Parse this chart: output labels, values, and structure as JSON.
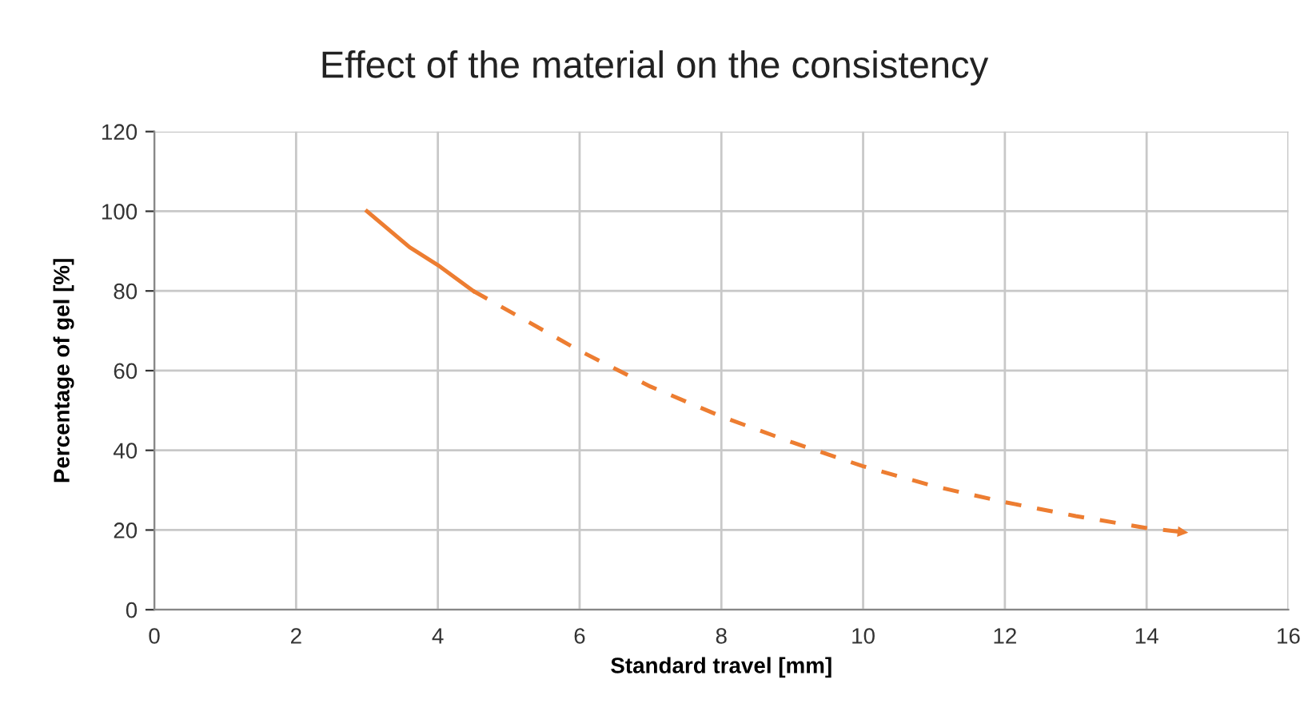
{
  "chart_data": {
    "type": "line",
    "title": "Effect of the material on the consistency",
    "xlabel": "Standard travel [mm]",
    "ylabel": "Percentage of gel [%]",
    "xlim": [
      0,
      16
    ],
    "xticks": [
      0,
      2,
      4,
      6,
      8,
      10,
      12,
      14,
      16
    ],
    "ylim": [
      0,
      120
    ],
    "yticks": [
      0,
      20,
      40,
      60,
      80,
      100,
      120
    ],
    "grid": true,
    "legend": false,
    "marker": "none",
    "series": [
      {
        "color": "#ed7d31",
        "line_style": "solid",
        "x": [
          3,
          3.6,
          4,
          4.5
        ],
        "values": [
          100,
          91,
          86.5,
          80
        ]
      },
      {
        "color": "#ed7d31",
        "line_style": "dashed",
        "x": [
          4.5,
          6,
          7,
          8,
          9,
          10,
          11,
          12,
          13,
          14,
          14.5
        ],
        "values": [
          80,
          65,
          56,
          48.5,
          42,
          36,
          31,
          27,
          23.5,
          20.5,
          19.5
        ]
      }
    ]
  }
}
